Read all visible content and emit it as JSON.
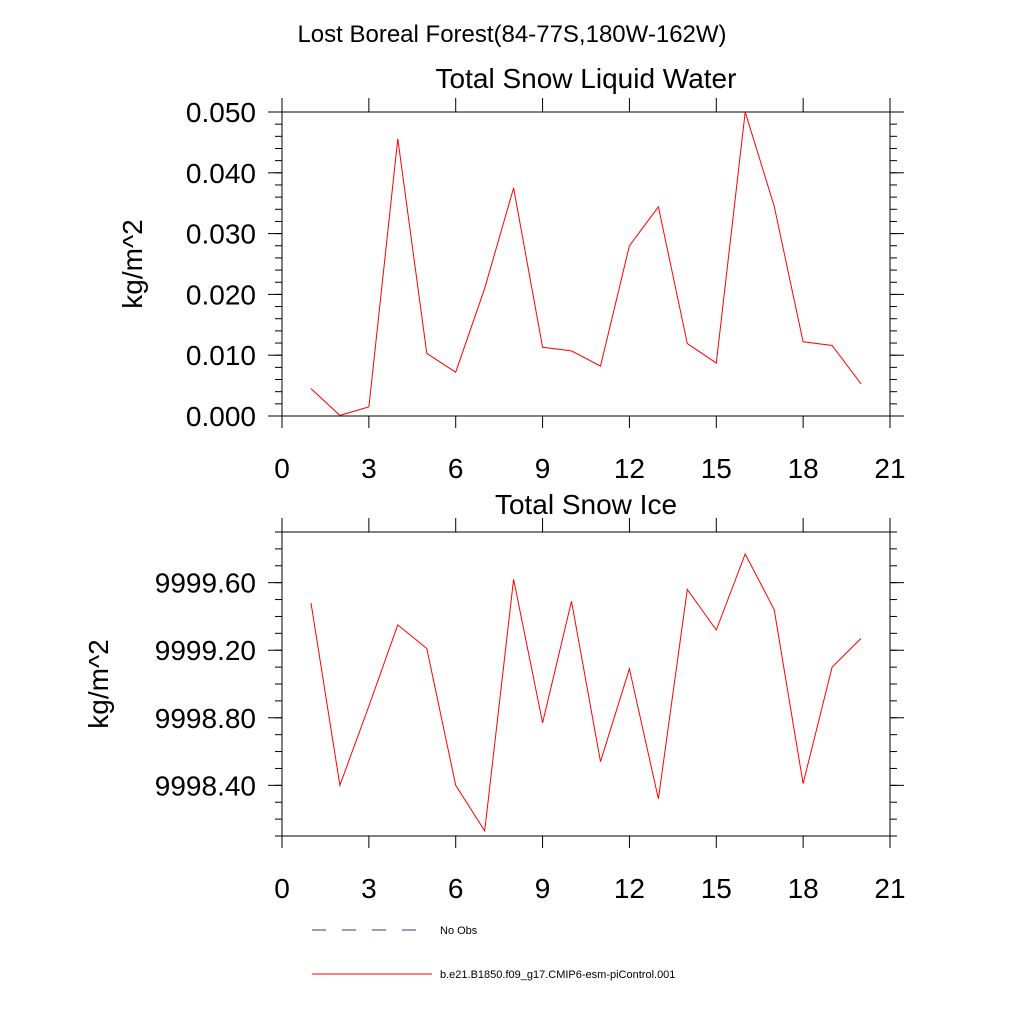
{
  "figure_title": "Lost Boreal Forest(84-77S,180W-162W)",
  "chart_data": [
    {
      "type": "line",
      "title": "Total Snow Liquid Water",
      "ylabel": "kg/m^2",
      "xlabel": "",
      "xlim": [
        0,
        21
      ],
      "ylim": [
        0.0,
        0.05
      ],
      "xticks": [
        0,
        3,
        6,
        9,
        12,
        15,
        18,
        21
      ],
      "xtick_labels": [
        "0",
        "3",
        "6",
        "9",
        "12",
        "15",
        "18",
        "21"
      ],
      "yticks": [
        0.0,
        0.01,
        0.02,
        0.03,
        0.04,
        0.05
      ],
      "ytick_labels": [
        "0.000",
        "0.010",
        "0.020",
        "0.030",
        "0.040",
        "0.050"
      ],
      "series": [
        {
          "name": "b.e21.B1850.f09_g17.CMIP6-esm-piControl.001",
          "color": "#ff0000",
          "x": [
            1,
            2,
            3,
            4,
            5,
            6,
            7,
            8,
            9,
            10,
            11,
            12,
            13,
            14,
            15,
            16,
            17,
            18,
            19,
            20
          ],
          "values": [
            0.0045,
            0.0001,
            0.0015,
            0.0456,
            0.0103,
            0.0072,
            0.021,
            0.0375,
            0.0113,
            0.0107,
            0.0082,
            0.028,
            0.0344,
            0.0119,
            0.0087,
            0.05,
            0.0345,
            0.0122,
            0.0116,
            0.0053
          ]
        }
      ]
    },
    {
      "type": "line",
      "title": "Total Snow Ice",
      "ylabel": "kg/m^2",
      "xlabel": "",
      "xlim": [
        0,
        21
      ],
      "ylim": [
        9998.1,
        9999.9
      ],
      "xticks": [
        0,
        3,
        6,
        9,
        12,
        15,
        18,
        21
      ],
      "xtick_labels": [
        "0",
        "3",
        "6",
        "9",
        "12",
        "15",
        "18",
        "21"
      ],
      "yticks": [
        9998.4,
        9998.8,
        9999.2,
        9999.6
      ],
      "ytick_labels": [
        "9998.40",
        "9998.80",
        "9999.20",
        "9999.60"
      ],
      "series": [
        {
          "name": "b.e21.B1850.f09_g17.CMIP6-esm-piControl.001",
          "color": "#ff0000",
          "x": [
            1,
            2,
            3,
            4,
            5,
            6,
            7,
            8,
            9,
            10,
            11,
            12,
            13,
            14,
            15,
            16,
            17,
            18,
            19,
            20
          ],
          "values": [
            9999.48,
            9998.4,
            9998.87,
            9999.35,
            9999.21,
            9998.4,
            9998.13,
            9999.62,
            9998.77,
            9999.49,
            9998.54,
            9999.09,
            9998.32,
            9999.56,
            9999.32,
            9999.77,
            9999.44,
            9998.41,
            9999.1,
            9999.27
          ]
        }
      ]
    }
  ],
  "legend": {
    "items": [
      {
        "label": "No Obs",
        "style": "dashed",
        "color": "#3b3b6b"
      },
      {
        "label": "b.e21.B1850.f09_g17.CMIP6-esm-piControl.001",
        "style": "solid",
        "color": "#ff0000"
      }
    ]
  }
}
